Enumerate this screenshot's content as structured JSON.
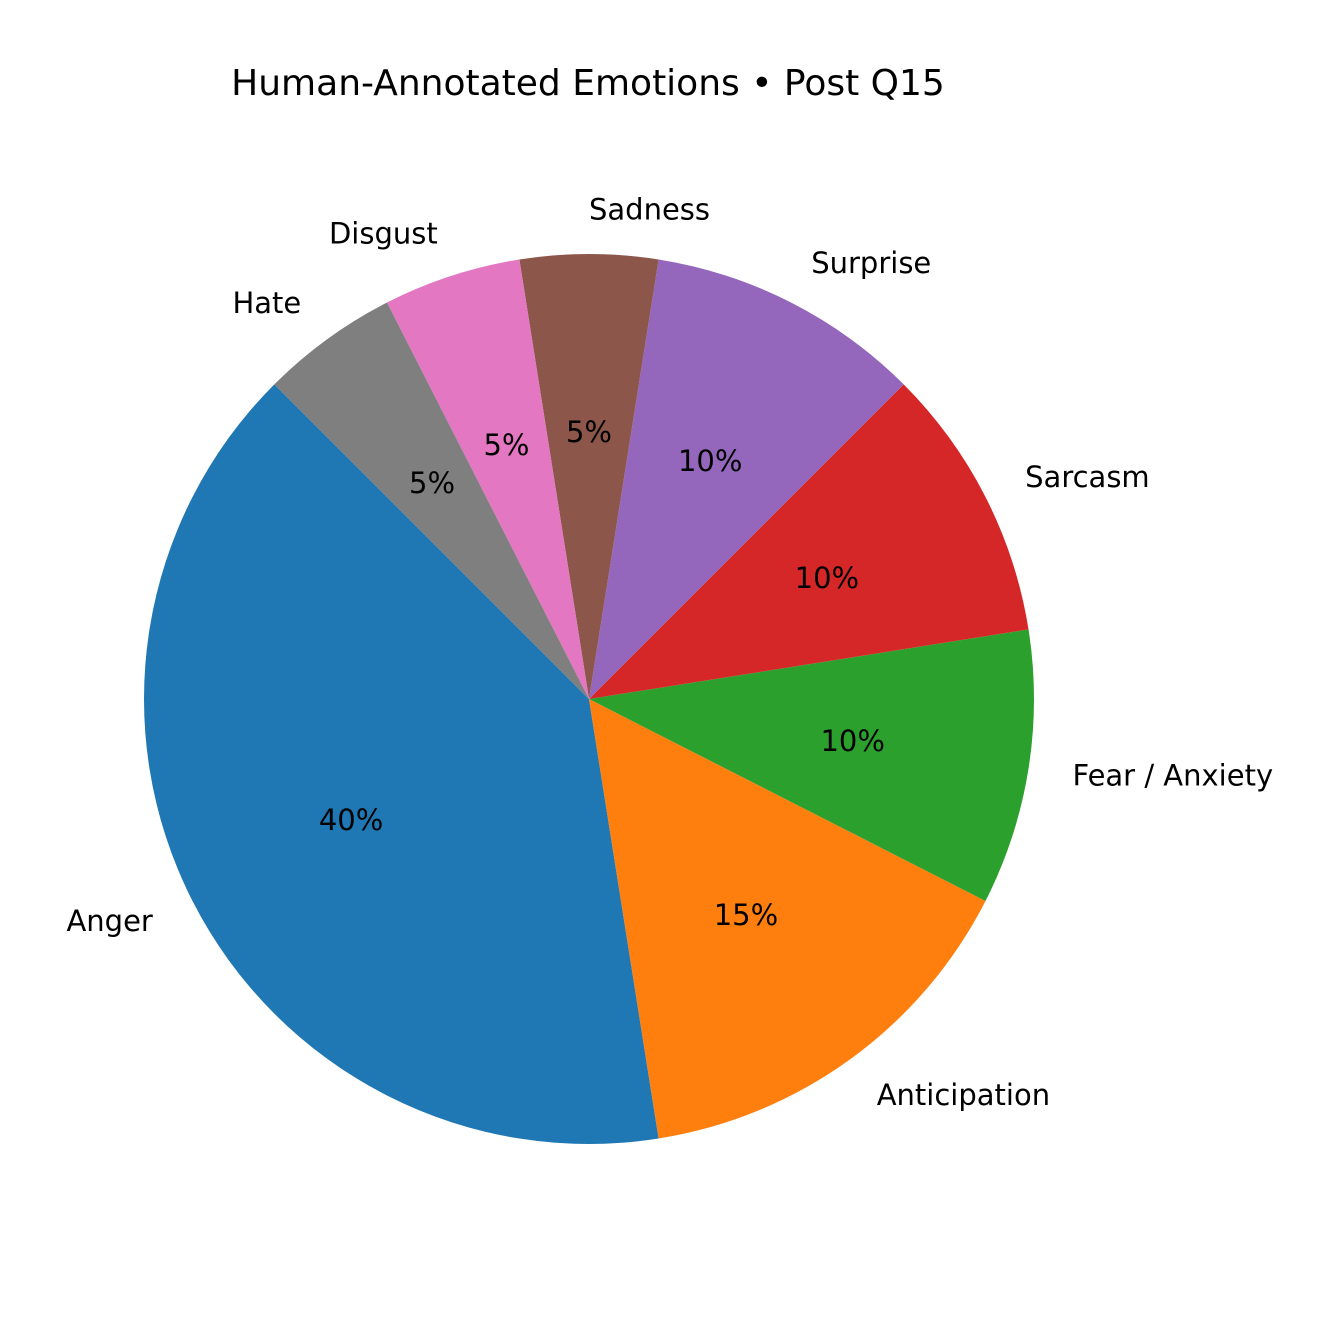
{
  "chart_data": {
    "type": "pie",
    "title": "Human-Annotated Emotions • Post Q15",
    "start_angle_deg": 135,
    "direction": "counterclockwise",
    "slices": [
      {
        "label": "Anger",
        "value": 40,
        "pct_label": "40%",
        "color": "#1f77b4"
      },
      {
        "label": "Anticipation",
        "value": 15,
        "pct_label": "15%",
        "color": "#ff7f0e"
      },
      {
        "label": "Fear / Anxiety",
        "value": 10,
        "pct_label": "10%",
        "color": "#2ca02c"
      },
      {
        "label": "Sarcasm",
        "value": 10,
        "pct_label": "10%",
        "color": "#d62728"
      },
      {
        "label": "Surprise",
        "value": 10,
        "pct_label": "10%",
        "color": "#9467bd"
      },
      {
        "label": "Sadness",
        "value": 5,
        "pct_label": "5%",
        "color": "#8c564b"
      },
      {
        "label": "Disgust",
        "value": 5,
        "pct_label": "5%",
        "color": "#e377c2"
      },
      {
        "label": "Hate",
        "value": 5,
        "pct_label": "5%",
        "color": "#7f7f7f"
      }
    ]
  }
}
